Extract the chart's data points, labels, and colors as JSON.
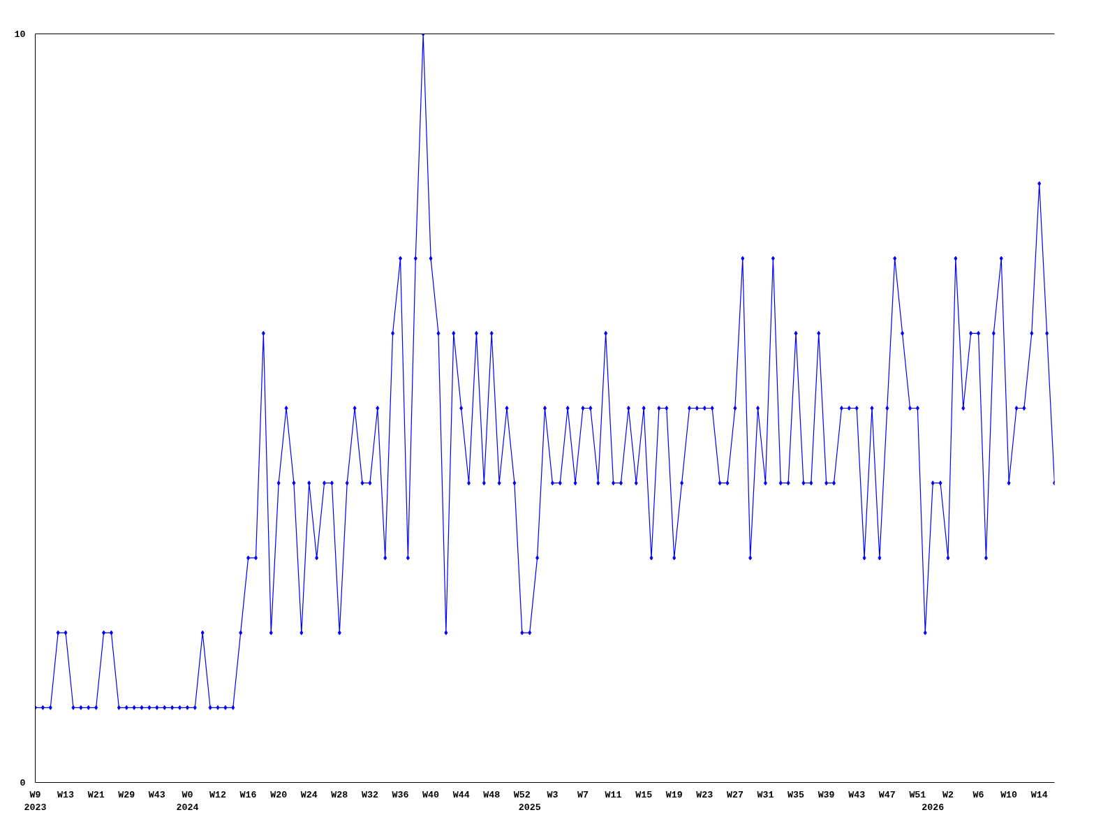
{
  "chart_data": {
    "type": "line",
    "categories": [
      "W9\n2023",
      null,
      null,
      null,
      "W13",
      null,
      null,
      null,
      "W21",
      null,
      null,
      null,
      "W29",
      null,
      null,
      null,
      "W43",
      null,
      null,
      null,
      "W0\n2024",
      null,
      null,
      null,
      "W12",
      null,
      null,
      null,
      "W16",
      null,
      null,
      null,
      "W20",
      null,
      null,
      null,
      "W24",
      null,
      null,
      null,
      "W28",
      null,
      null,
      null,
      "W32",
      null,
      null,
      null,
      "W36",
      null,
      null,
      null,
      "W40",
      null,
      null,
      null,
      "W44",
      null,
      null,
      null,
      "W48",
      null,
      null,
      null,
      "W52",
      "\n2025",
      null,
      null,
      "W3",
      null,
      null,
      null,
      "W7",
      null,
      null,
      null,
      "W11",
      null,
      null,
      null,
      "W15",
      null,
      null,
      null,
      "W19",
      null,
      null,
      null,
      "W23",
      null,
      null,
      null,
      "W27",
      null,
      null,
      null,
      "W31",
      null,
      null,
      null,
      "W35",
      null,
      null,
      null,
      "W39",
      null,
      null,
      null,
      "W43",
      null,
      null,
      null,
      "W47",
      null,
      null,
      null,
      "W51",
      null,
      "\n2026",
      null,
      "W2",
      null,
      null,
      null,
      "W6",
      null,
      null,
      null,
      "W10",
      null,
      null,
      null,
      "W14",
      null,
      null
    ],
    "values": [
      1,
      1,
      1,
      2,
      2,
      1,
      1,
      1,
      1,
      2,
      2,
      1,
      1,
      1,
      1,
      1,
      1,
      1,
      1,
      1,
      1,
      1,
      2,
      1,
      1,
      1,
      1,
      2,
      3,
      3,
      6,
      2,
      4,
      5,
      4,
      2,
      4,
      3,
      4,
      4,
      2,
      4,
      5,
      4,
      4,
      5,
      3,
      6,
      7,
      3,
      7,
      10,
      7,
      6,
      2,
      6,
      5,
      4,
      6,
      4,
      6,
      4,
      5,
      4,
      2,
      2,
      3,
      5,
      4,
      4,
      5,
      4,
      5,
      5,
      4,
      6,
      4,
      4,
      5,
      4,
      5,
      3,
      5,
      5,
      3,
      4,
      5,
      5,
      5,
      5,
      4,
      4,
      5,
      7,
      3,
      5,
      4,
      7,
      4,
      4,
      6,
      4,
      4,
      6,
      4,
      4,
      5,
      5,
      5,
      3,
      5,
      3,
      5,
      7,
      6,
      5,
      5,
      2,
      4,
      4,
      3,
      7,
      5,
      6,
      6,
      3,
      6,
      7,
      4,
      5,
      5,
      6,
      8,
      6,
      4
    ],
    "color": "#0000ff",
    "ylim": [
      0,
      10
    ],
    "yticks": [
      0,
      10
    ],
    "marker": "diamond",
    "line_style": "solid",
    "grid": false
  }
}
